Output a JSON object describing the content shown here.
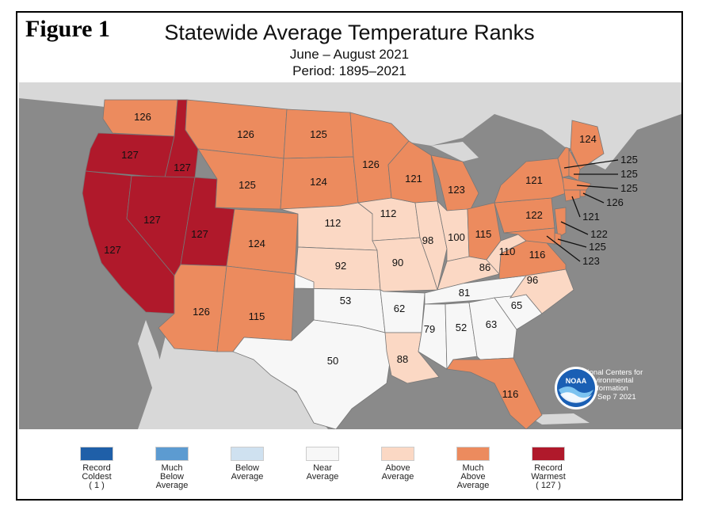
{
  "figure_label": "Figure 1",
  "title": "Statewide Average Temperature Ranks",
  "subtitle": "June – August 2021",
  "period": "Period: 1895–2021",
  "colors": {
    "record_coldest": "#1f5fa8",
    "much_below": "#5c9bd1",
    "below": "#cfe1f0",
    "near": "#f7f7f7",
    "above": "#fbd8c4",
    "much_above": "#ec8b5e",
    "record_warmest": "#b0192b",
    "land_bg": "#d8d8d8",
    "water": "#8a8a8a"
  },
  "legend": [
    {
      "label": "Record\nColdest\n( 1 )",
      "color": "#1f5fa8"
    },
    {
      "label": "Much\nBelow\nAverage",
      "color": "#5c9bd1"
    },
    {
      "label": "Below\nAverage",
      "color": "#cfe1f0"
    },
    {
      "label": "Near\nAverage",
      "color": "#f7f7f7"
    },
    {
      "label": "Above\nAverage",
      "color": "#fbd8c4"
    },
    {
      "label": "Much\nAbove\nAverage",
      "color": "#ec8b5e"
    },
    {
      "label": "Record\nWarmest\n( 127 )",
      "color": "#b0192b"
    }
  ],
  "states": [
    {
      "name": "WA",
      "rank": "126",
      "category": "much_above"
    },
    {
      "name": "OR",
      "rank": "127",
      "category": "record_warmest"
    },
    {
      "name": "ID",
      "rank": "127",
      "category": "record_warmest"
    },
    {
      "name": "CA",
      "rank": "127",
      "category": "record_warmest"
    },
    {
      "name": "NV",
      "rank": "127",
      "category": "record_warmest"
    },
    {
      "name": "UT",
      "rank": "127",
      "category": "record_warmest"
    },
    {
      "name": "MT",
      "rank": "126",
      "category": "much_above"
    },
    {
      "name": "WY",
      "rank": "125",
      "category": "much_above"
    },
    {
      "name": "CO",
      "rank": "124",
      "category": "much_above"
    },
    {
      "name": "AZ",
      "rank": "126",
      "category": "much_above"
    },
    {
      "name": "NM",
      "rank": "115",
      "category": "much_above"
    },
    {
      "name": "ND",
      "rank": "125",
      "category": "much_above"
    },
    {
      "name": "SD",
      "rank": "124",
      "category": "much_above"
    },
    {
      "name": "NE",
      "rank": "112",
      "category": "above"
    },
    {
      "name": "KS",
      "rank": "92",
      "category": "above"
    },
    {
      "name": "OK",
      "rank": "53",
      "category": "near"
    },
    {
      "name": "TX",
      "rank": "50",
      "category": "near"
    },
    {
      "name": "MN",
      "rank": "126",
      "category": "much_above"
    },
    {
      "name": "IA",
      "rank": "112",
      "category": "above"
    },
    {
      "name": "MO",
      "rank": "90",
      "category": "above"
    },
    {
      "name": "AR",
      "rank": "62",
      "category": "near"
    },
    {
      "name": "LA",
      "rank": "88",
      "category": "above"
    },
    {
      "name": "WI",
      "rank": "121",
      "category": "much_above"
    },
    {
      "name": "IL",
      "rank": "98",
      "category": "above"
    },
    {
      "name": "MI",
      "rank": "123",
      "category": "much_above"
    },
    {
      "name": "IN",
      "rank": "100",
      "category": "above"
    },
    {
      "name": "OH",
      "rank": "115",
      "category": "much_above"
    },
    {
      "name": "KY",
      "rank": "86",
      "category": "above"
    },
    {
      "name": "TN",
      "rank": "81",
      "category": "near"
    },
    {
      "name": "MS",
      "rank": "79",
      "category": "near"
    },
    {
      "name": "AL",
      "rank": "52",
      "category": "near"
    },
    {
      "name": "GA",
      "rank": "63",
      "category": "near"
    },
    {
      "name": "FL",
      "rank": "116",
      "category": "much_above"
    },
    {
      "name": "SC",
      "rank": "65",
      "category": "near"
    },
    {
      "name": "NC",
      "rank": "96",
      "category": "above"
    },
    {
      "name": "VA",
      "rank": "116",
      "category": "much_above"
    },
    {
      "name": "WV",
      "rank": "110",
      "category": "above"
    },
    {
      "name": "PA",
      "rank": "122",
      "category": "much_above"
    },
    {
      "name": "NY",
      "rank": "121",
      "category": "much_above"
    },
    {
      "name": "ME",
      "rank": "124",
      "category": "much_above"
    },
    {
      "name": "VT",
      "rank": "125",
      "category": "much_above"
    },
    {
      "name": "NH",
      "rank": "125",
      "category": "much_above"
    },
    {
      "name": "MA",
      "rank": "125",
      "category": "much_above"
    },
    {
      "name": "RI",
      "rank": "126",
      "category": "much_above"
    },
    {
      "name": "CT",
      "rank": "121",
      "category": "much_above"
    },
    {
      "name": "NJ",
      "rank": "122",
      "category": "much_above"
    },
    {
      "name": "DE",
      "rank": "125",
      "category": "much_above"
    },
    {
      "name": "MD",
      "rank": "123",
      "category": "much_above"
    }
  ],
  "noaa": {
    "logo_text": "NOAA",
    "org": "National Centers for\nEnvironmental\nInformation",
    "date": "Tue Sep  7 2021"
  }
}
